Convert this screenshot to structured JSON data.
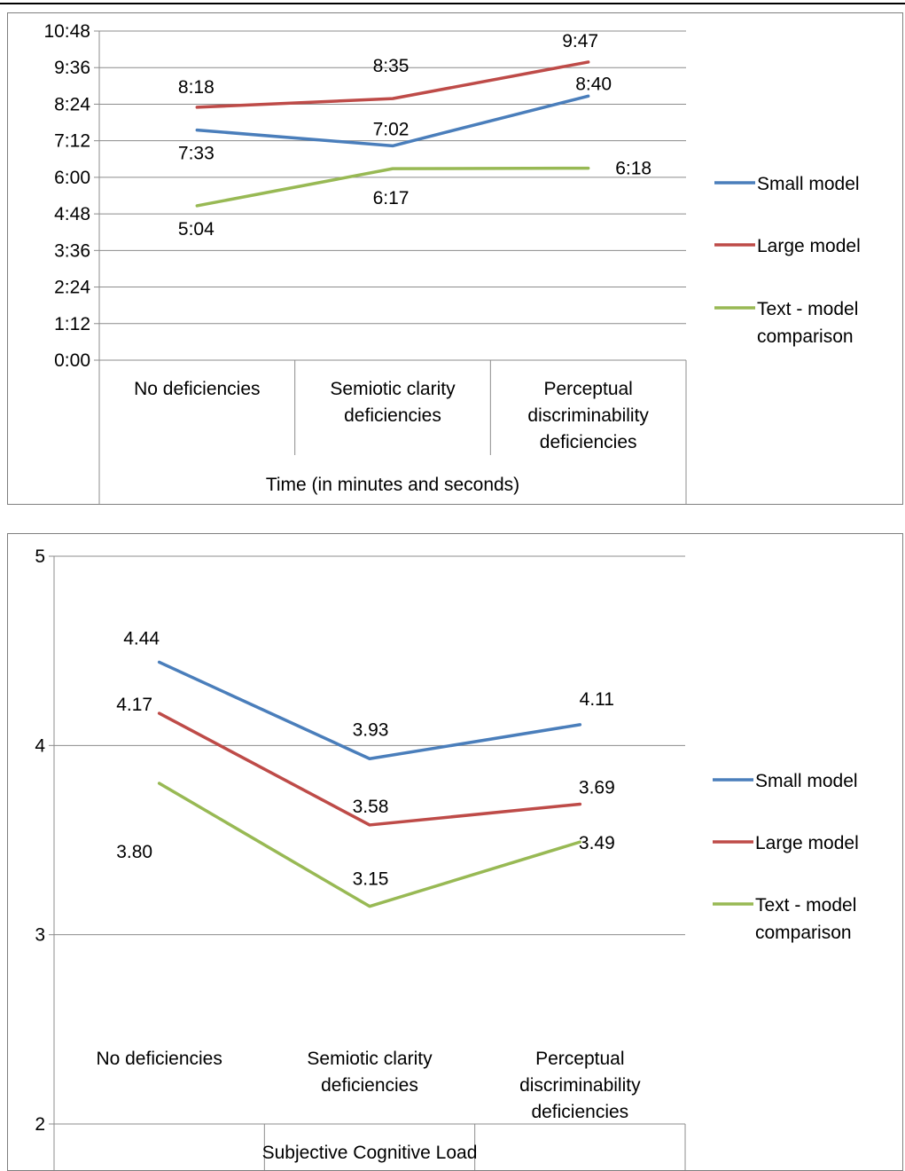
{
  "chart_data": [
    {
      "type": "line",
      "title": "",
      "xlabel": "Time (in minutes and seconds)",
      "ylabel": "",
      "categories": [
        "No deficiencies",
        "Semiotic clarity deficiencies",
        "Perceptual discriminability deficiencies"
      ],
      "ytick_labels": [
        "0:00",
        "1:12",
        "2:24",
        "3:36",
        "4:48",
        "6:00",
        "7:12",
        "8:24",
        "9:36",
        "10:48"
      ],
      "ylim": [
        0,
        648
      ],
      "y_units": "seconds",
      "grid": true,
      "legend_position": "right",
      "series": [
        {
          "name": "Small model",
          "color": "#4a7ebb",
          "values": [
            453,
            422,
            520
          ],
          "labels": [
            "7:33",
            "7:02",
            "8:40"
          ]
        },
        {
          "name": "Large model",
          "color": "#be4b48",
          "values": [
            498,
            515,
            587
          ],
          "labels": [
            "8:18",
            "8:35",
            "9:47"
          ]
        },
        {
          "name": "Text - model comparison",
          "color": "#98b954",
          "values": [
            304,
            377,
            378
          ],
          "labels": [
            "5:04",
            "6:17",
            "6:18"
          ]
        }
      ]
    },
    {
      "type": "line",
      "title": "",
      "xlabel": "Subjective Cognitive Load",
      "ylabel": "",
      "categories": [
        "No deficiencies",
        "Semiotic clarity deficiencies",
        "Perceptual discriminability deficiencies"
      ],
      "ytick_labels": [
        "2",
        "3",
        "4",
        "5"
      ],
      "ylim": [
        2,
        5
      ],
      "grid": true,
      "legend_position": "right",
      "series": [
        {
          "name": "Small model",
          "color": "#4a7ebb",
          "values": [
            4.44,
            3.93,
            4.11
          ],
          "labels": [
            "4.44",
            "3.93",
            "4.11"
          ]
        },
        {
          "name": "Large model",
          "color": "#be4b48",
          "values": [
            4.17,
            3.58,
            3.69
          ],
          "labels": [
            "4.17",
            "3.58",
            "3.69"
          ]
        },
        {
          "name": "Text - model comparison",
          "color": "#98b954",
          "values": [
            3.8,
            3.15,
            3.49
          ],
          "labels": [
            "3.80",
            "3.15",
            "3.49"
          ]
        }
      ]
    }
  ]
}
